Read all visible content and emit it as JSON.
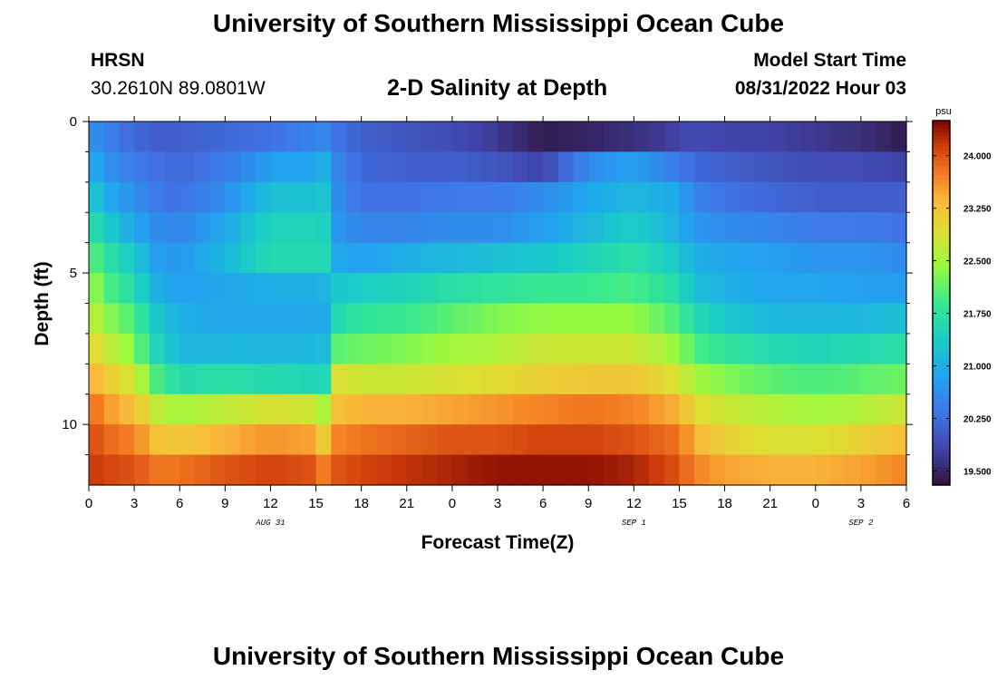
{
  "header": {
    "title": "University of Southern Mississippi Ocean Cube",
    "station": "HRSN",
    "coords": "30.2610N  89.0801W",
    "subtitle": "2-D Salinity at Depth",
    "start_label": "Model Start Time",
    "start_value": "08/31/2022 Hour 03"
  },
  "footer": {
    "title": "University of Southern Mississippi Ocean Cube"
  },
  "chart_data": {
    "type": "heatmap",
    "title": "2-D Salinity at Depth",
    "xlabel": "Forecast Time(Z)",
    "ylabel": "Depth (ft)",
    "x_start_hour": 0,
    "x_end_hour": 54,
    "x_tick_labels": [
      "0",
      "3",
      "6",
      "9",
      "12",
      "15",
      "18",
      "21",
      "0",
      "3",
      "6",
      "9",
      "12",
      "15",
      "18",
      "21",
      "0",
      "3",
      "6"
    ],
    "x_day_labels": [
      {
        "label": "AUG 31",
        "hour": 12
      },
      {
        "label": "SEP 1",
        "hour": 36
      },
      {
        "label": "SEP 2",
        "hour": 51
      }
    ],
    "ylim": [
      0,
      12
    ],
    "y_tick_labels": [
      "0",
      "5",
      "10"
    ],
    "y_ticks": [
      0,
      5,
      10
    ],
    "colorbar": {
      "unit": "psu",
      "min": 19.3,
      "max": 24.5,
      "tick_values": [
        19.5,
        20.25,
        21.0,
        21.75,
        22.5,
        23.25,
        24.0
      ],
      "tick_labels": [
        "19.500",
        "20.250",
        "21.000",
        "21.750",
        "22.500",
        "23.250",
        "24.000"
      ]
    },
    "depth_layers": [
      0.5,
      1.5,
      2.5,
      3.5,
      4.5,
      5.5,
      6.5,
      7.5,
      8.5,
      9.5,
      10.5,
      11.5
    ],
    "key_hours": [
      0,
      1,
      3,
      4.5,
      6,
      9,
      12,
      15,
      16,
      16.5,
      18,
      21,
      24,
      27,
      30,
      33,
      36,
      39,
      40,
      42,
      45,
      48,
      51,
      54
    ],
    "salinity_rows": [
      [
        20.7,
        20.5,
        20.2,
        20.1,
        20.1,
        20.2,
        20.3,
        20.5,
        20.6,
        20.3,
        20.1,
        20.0,
        19.9,
        19.7,
        19.4,
        19.5,
        19.6,
        19.8,
        19.9,
        19.8,
        19.8,
        19.7,
        19.6,
        19.4
      ],
      [
        21.0,
        20.7,
        20.4,
        20.3,
        20.2,
        20.4,
        20.8,
        20.9,
        21.1,
        20.5,
        20.2,
        20.1,
        20.1,
        20.0,
        19.8,
        20.6,
        20.8,
        20.4,
        20.2,
        20.1,
        20.0,
        19.9,
        19.9,
        19.8
      ],
      [
        21.4,
        21.0,
        20.6,
        20.4,
        20.3,
        20.6,
        21.2,
        21.2,
        21.3,
        20.6,
        20.3,
        20.3,
        20.4,
        20.4,
        20.6,
        20.9,
        21.1,
        20.9,
        20.5,
        20.3,
        20.2,
        20.1,
        20.1,
        20.1
      ],
      [
        21.8,
        21.4,
        20.9,
        20.6,
        20.5,
        20.9,
        21.5,
        21.5,
        21.4,
        20.7,
        20.5,
        20.5,
        20.6,
        20.6,
        20.8,
        21.1,
        21.4,
        21.0,
        20.7,
        20.6,
        20.5,
        20.4,
        20.4,
        20.3
      ],
      [
        22.2,
        21.8,
        21.3,
        20.8,
        20.7,
        21.1,
        21.6,
        21.6,
        21.5,
        20.9,
        20.8,
        21.0,
        21.1,
        21.2,
        21.3,
        21.5,
        21.7,
        21.3,
        21.0,
        20.9,
        20.8,
        20.7,
        20.7,
        20.6
      ],
      [
        22.5,
        22.1,
        21.6,
        21.0,
        20.8,
        20.9,
        21.0,
        21.0,
        21.1,
        21.3,
        21.4,
        21.5,
        21.7,
        21.8,
        21.9,
        21.9,
        22.0,
        21.6,
        21.2,
        21.0,
        20.9,
        20.9,
        20.8,
        20.8
      ],
      [
        22.8,
        22.4,
        22.0,
        21.3,
        21.0,
        20.9,
        20.9,
        20.9,
        21.0,
        21.6,
        21.8,
        21.9,
        22.1,
        22.3,
        22.4,
        22.4,
        22.4,
        22.0,
        21.6,
        21.3,
        21.1,
        21.1,
        21.1,
        21.2
      ],
      [
        23.1,
        22.8,
        22.3,
        21.5,
        21.1,
        21.1,
        21.1,
        21.1,
        21.2,
        22.1,
        22.2,
        22.3,
        22.5,
        22.6,
        22.8,
        22.8,
        22.8,
        22.4,
        22.0,
        21.8,
        21.6,
        21.5,
        21.6,
        21.7
      ],
      [
        23.5,
        23.2,
        22.8,
        22.0,
        21.6,
        21.7,
        21.6,
        21.5,
        21.6,
        22.9,
        22.8,
        22.8,
        22.9,
        23.0,
        23.1,
        23.2,
        23.2,
        22.9,
        22.5,
        22.3,
        22.1,
        22.0,
        22.1,
        22.2
      ],
      [
        23.9,
        23.6,
        23.3,
        22.7,
        22.5,
        22.7,
        22.9,
        22.8,
        22.3,
        23.3,
        23.4,
        23.4,
        23.5,
        23.6,
        23.7,
        23.8,
        23.7,
        23.4,
        23.0,
        22.8,
        22.6,
        22.5,
        22.6,
        22.8
      ],
      [
        24.1,
        23.9,
        23.7,
        23.3,
        23.2,
        23.4,
        23.6,
        23.5,
        22.8,
        23.7,
        23.8,
        23.9,
        24.0,
        24.0,
        24.1,
        24.1,
        24.0,
        23.8,
        23.4,
        23.1,
        22.9,
        22.9,
        23.1,
        23.3
      ],
      [
        24.2,
        24.1,
        24.0,
        23.8,
        23.8,
        24.0,
        24.1,
        24.0,
        23.5,
        24.0,
        24.1,
        24.2,
        24.3,
        24.4,
        24.4,
        24.4,
        24.3,
        24.0,
        23.7,
        23.5,
        23.4,
        23.4,
        23.5,
        23.7
      ]
    ]
  }
}
